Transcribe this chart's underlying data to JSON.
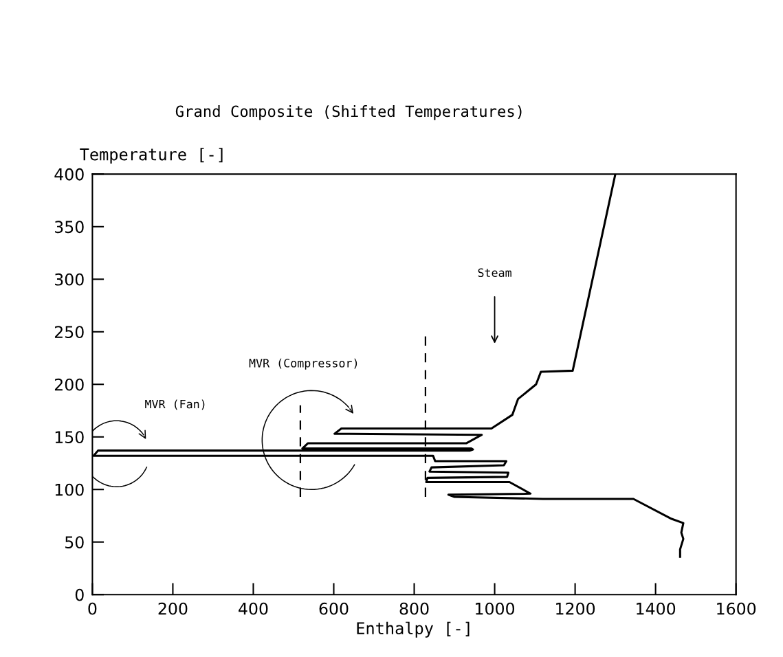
{
  "chart_data": {
    "type": "line",
    "title": "Grand Composite (Shifted Temperatures)",
    "xlabel": "Enthalpy [-]",
    "ylabel": "Temperature [-]",
    "xlim": [
      0,
      1600
    ],
    "ylim": [
      0,
      400
    ],
    "xticks": [
      0,
      200,
      400,
      600,
      800,
      1000,
      1200,
      1400,
      1600
    ],
    "yticks": [
      0,
      50,
      100,
      150,
      200,
      250,
      300,
      350,
      400
    ],
    "marker": "none",
    "series": [
      {
        "color": "#000000",
        "line_style": "solid",
        "x": [
          1300,
          1194,
          1115,
          1103,
          1058,
          1044,
          992,
          619,
          602,
          968,
          930,
          536,
          522,
          942,
          946,
          939,
          14,
          3,
          847,
          852,
          1029,
          1023,
          843,
          838,
          1034,
          1031,
          833,
          830,
          1037,
          1089,
          885,
          899,
          1120,
          1345,
          1440,
          1469,
          1464,
          1469,
          1461,
          1461
        ],
        "values": [
          400,
          213,
          212,
          200,
          186,
          171,
          158,
          158,
          153,
          152,
          144,
          144,
          139,
          139,
          138,
          137,
          137,
          132,
          132,
          127,
          127,
          123,
          121,
          117,
          116,
          112,
          111,
          107,
          107,
          96,
          95,
          93,
          91,
          91,
          72,
          68,
          59,
          53,
          43,
          36
        ]
      },
      {
        "color": "#000000",
        "line_style": "dashed",
        "x": [
          517,
          517
        ],
        "values": [
          93,
          180
        ]
      },
      {
        "color": "#000000",
        "line_style": "dashed",
        "x": [
          828,
          828
        ],
        "values": [
          93,
          248
        ]
      }
    ],
    "annotations": [
      "MVR (Fan)",
      "MVR (Compressor)",
      "Steam"
    ]
  }
}
